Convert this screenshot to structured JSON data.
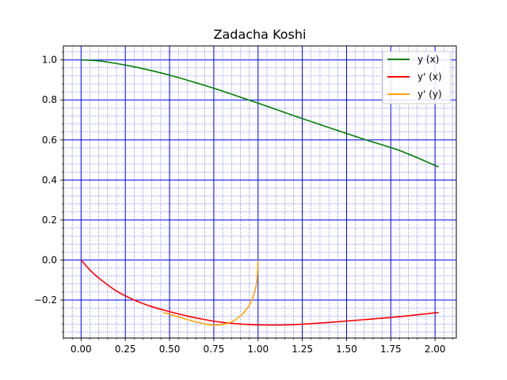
{
  "chart_data": {
    "type": "line",
    "title": "Zadacha Koshi",
    "xlabel": "",
    "ylabel": "",
    "xlim": [
      -0.1,
      2.12
    ],
    "ylim": [
      -0.39,
      1.07
    ],
    "x_ticks": [
      0.0,
      0.25,
      0.5,
      0.75,
      1.0,
      1.25,
      1.5,
      1.75,
      2.0
    ],
    "x_tick_labels": [
      "0.00",
      "0.25",
      "0.50",
      "0.75",
      "1.00",
      "1.25",
      "1.50",
      "1.75",
      "2.00"
    ],
    "y_ticks": [
      -0.2,
      0.0,
      0.2,
      0.4,
      0.6,
      0.8,
      1.0
    ],
    "y_tick_labels": [
      "−0.2",
      "0.0",
      "0.2",
      "0.4",
      "0.6",
      "0.8",
      "1.0"
    ],
    "x_minor_step": 0.05,
    "y_minor_step": 0.04,
    "grid": true,
    "grid_major_color": "#0000ff",
    "grid_minor_color": "#0000ff",
    "legend_position": "top-right",
    "series": [
      {
        "name": "y (x)",
        "color": "#007f00",
        "x": [
          0.0,
          0.1,
          0.2,
          0.3,
          0.4,
          0.5,
          0.6,
          0.7,
          0.8,
          0.9,
          1.0,
          1.2,
          1.4,
          1.6,
          1.8,
          2.02
        ],
        "y": [
          1.0,
          0.995,
          0.982,
          0.966,
          0.946,
          0.924,
          0.899,
          0.872,
          0.844,
          0.814,
          0.784,
          0.722,
          0.662,
          0.603,
          0.547,
          0.465
        ]
      },
      {
        "name": "y' (x)",
        "color": "#ff0000",
        "x": [
          0.0,
          0.05,
          0.1,
          0.2,
          0.3,
          0.4,
          0.5,
          0.6,
          0.7,
          0.8,
          0.9,
          1.0,
          1.1,
          1.2,
          1.4,
          1.6,
          1.8,
          2.02
        ],
        "y": [
          0.0,
          -0.05,
          -0.09,
          -0.155,
          -0.2,
          -0.233,
          -0.258,
          -0.28,
          -0.298,
          -0.312,
          -0.32,
          -0.324,
          -0.325,
          -0.323,
          -0.312,
          -0.298,
          -0.283,
          -0.262
        ]
      },
      {
        "name": "y' (y)",
        "color": "#ffa500",
        "x": [
          0.465,
          0.547,
          0.603,
          0.662,
          0.722,
          0.784,
          0.844,
          0.899,
          0.946,
          0.982,
          0.995,
          1.0
        ],
        "y": [
          -0.262,
          -0.283,
          -0.298,
          -0.312,
          -0.323,
          -0.324,
          -0.312,
          -0.28,
          -0.233,
          -0.155,
          -0.09,
          0.0
        ]
      }
    ]
  }
}
